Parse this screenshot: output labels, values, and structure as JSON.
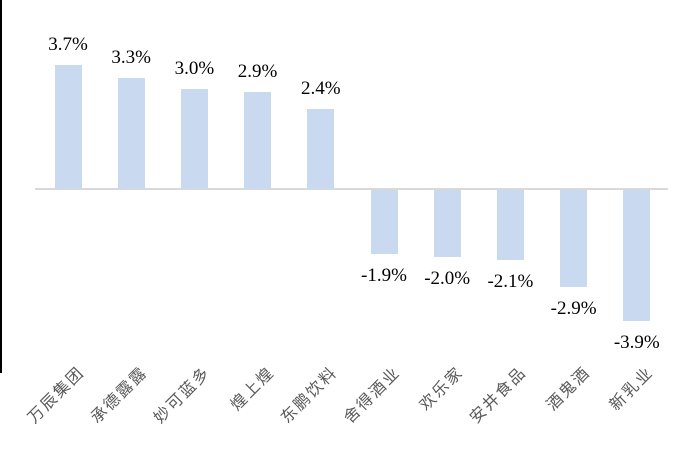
{
  "figure": {
    "left_border_color": "#000000"
  },
  "chart_data": {
    "type": "bar",
    "categories": [
      "万辰集团",
      "承德露露",
      "妙可蓝多",
      "煌上煌",
      "东鹏饮料",
      "舍得酒业",
      "欢乐家",
      "安井食品",
      "酒鬼酒",
      "新乳业"
    ],
    "values": [
      3.7,
      3.3,
      3.0,
      2.9,
      2.4,
      -1.9,
      -2.0,
      -2.1,
      -2.9,
      -3.9
    ],
    "value_labels": [
      "3.7%",
      "3.3%",
      "3.0%",
      "2.9%",
      "2.4%",
      "-1.9%",
      "-2.0%",
      "-2.1%",
      "-2.9%",
      "-3.9%"
    ],
    "title": "",
    "xlabel": "",
    "ylabel": "",
    "ylim": [
      -4.5,
      4.5
    ],
    "grid": false,
    "legend": false,
    "bar_color": "#c8d9f0",
    "axis_line_color": "#d9d9d9",
    "value_label_color": "#000000",
    "category_label_color": "#595959",
    "category_label_rotation_deg": 45
  }
}
